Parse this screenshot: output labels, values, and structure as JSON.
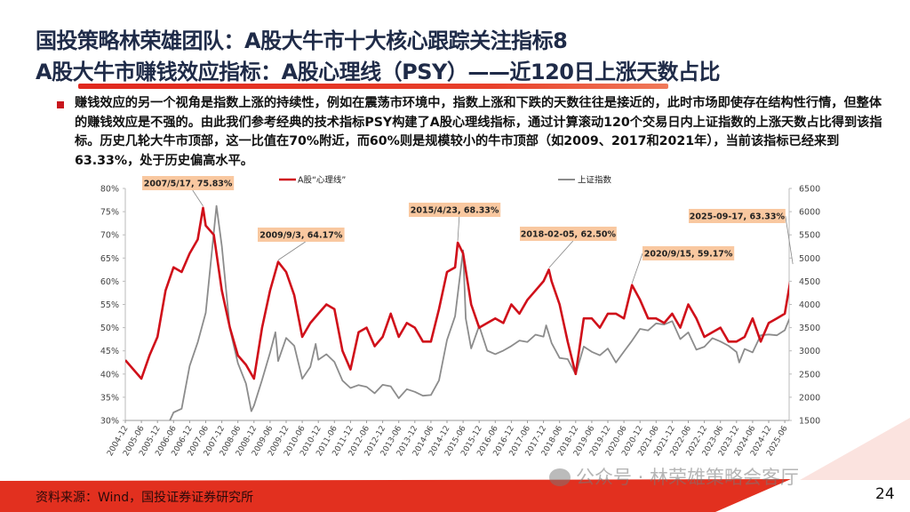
{
  "header": {
    "title_line1": "国投策略林荣雄团队：A股大牛市十大核心跟踪关注指标8",
    "title_line2": "A股大牛市赚钱效应指标：A股心理线（PSY）——近120日上涨天数占比"
  },
  "body": {
    "paragraph": "赚钱效应的另一个视角是指数上涨的持续性，例如在震荡市环境中，指数上涨和下跌的天数往往是接近的，此时市场即使存在结构性行情，但整体的赚钱效应是不强的。由此我们参考经典的技术指标PSY构建了A股心理线指标，通过计算滚动120个交易日内上证指数的上涨天数占比得到该指标。历史几轮大牛市顶部，这一比值在70%附近，而60%则是规模较小的牛市顶部（如2009、2017和2021年），当前该指标已经来到63.33%，处于历史偏高水平。"
  },
  "footer": {
    "source": "资料来源：Wind，国投证券证券研究所",
    "page": "24",
    "watermark": "公众号 · 林荣雄策略会客厅",
    "accent": "#e2301f"
  },
  "colors": {
    "title": "#1f2b48",
    "psy": "#d0101a",
    "sse": "#8c8c8c",
    "annotation_bg": "#f9c8a0"
  },
  "chart_data": {
    "type": "line",
    "left_axis": {
      "min": 0.3,
      "max": 0.8,
      "step": 0.05,
      "ticks": [
        "30%",
        "35%",
        "40%",
        "45%",
        "50%",
        "55%",
        "60%",
        "65%",
        "70%",
        "75%",
        "80%"
      ]
    },
    "right_axis": {
      "min": 1500,
      "max": 6500,
      "step": 500,
      "ticks": [
        "1500",
        "2000",
        "2500",
        "3000",
        "3500",
        "4000",
        "4500",
        "5000",
        "5500",
        "6000",
        "6500"
      ]
    },
    "x_ticks": [
      "2004-12",
      "2005-06",
      "2005-12",
      "2006-06",
      "2006-12",
      "2007-06",
      "2007-12",
      "2008-06",
      "2008-12",
      "2009-06",
      "2009-12",
      "2010-06",
      "2010-12",
      "2011-06",
      "2011-12",
      "2012-06",
      "2012-12",
      "2013-06",
      "2013-12",
      "2014-06",
      "2014-12",
      "2015-06",
      "2015-12",
      "2016-06",
      "2016-12",
      "2017-06",
      "2017-12",
      "2018-06",
      "2018-12",
      "2019-06",
      "2019-12",
      "2020-06",
      "2020-12",
      "2021-06",
      "2021-12",
      "2022-06",
      "2022-12",
      "2023-06",
      "2023-12",
      "2024-06",
      "2024-12",
      "2025-06"
    ],
    "legend": {
      "position": "top",
      "entries": [
        "A股“心理线”",
        "上证指数"
      ]
    },
    "series": [
      {
        "name": "A股“心理线”",
        "axis": "left",
        "color": "#d0101a",
        "points": [
          [
            "2004-12",
            0.43
          ],
          [
            "2005-03",
            0.41
          ],
          [
            "2005-06",
            0.39
          ],
          [
            "2005-09",
            0.44
          ],
          [
            "2005-12",
            0.48
          ],
          [
            "2006-03",
            0.58
          ],
          [
            "2006-06",
            0.63
          ],
          [
            "2006-09",
            0.62
          ],
          [
            "2006-12",
            0.66
          ],
          [
            "2007-03",
            0.69
          ],
          [
            "2007-05",
            0.7583
          ],
          [
            "2007-06",
            0.72
          ],
          [
            "2007-09",
            0.7
          ],
          [
            "2007-12",
            0.58
          ],
          [
            "2008-03",
            0.5
          ],
          [
            "2008-06",
            0.44
          ],
          [
            "2008-09",
            0.42
          ],
          [
            "2008-12",
            0.39
          ],
          [
            "2009-03",
            0.5
          ],
          [
            "2009-06",
            0.58
          ],
          [
            "2009-09",
            0.6417
          ],
          [
            "2009-12",
            0.62
          ],
          [
            "2010-03",
            0.57
          ],
          [
            "2010-06",
            0.48
          ],
          [
            "2010-09",
            0.51
          ],
          [
            "2010-12",
            0.53
          ],
          [
            "2011-03",
            0.55
          ],
          [
            "2011-06",
            0.54
          ],
          [
            "2011-09",
            0.45
          ],
          [
            "2011-12",
            0.41
          ],
          [
            "2012-03",
            0.49
          ],
          [
            "2012-06",
            0.5
          ],
          [
            "2012-09",
            0.46
          ],
          [
            "2012-12",
            0.48
          ],
          [
            "2013-03",
            0.53
          ],
          [
            "2013-06",
            0.48
          ],
          [
            "2013-09",
            0.51
          ],
          [
            "2013-12",
            0.5
          ],
          [
            "2014-03",
            0.47
          ],
          [
            "2014-06",
            0.47
          ],
          [
            "2014-09",
            0.54
          ],
          [
            "2014-12",
            0.62
          ],
          [
            "2015-03",
            0.63
          ],
          [
            "2015-04",
            0.6833
          ],
          [
            "2015-06",
            0.66
          ],
          [
            "2015-09",
            0.55
          ],
          [
            "2015-12",
            0.5
          ],
          [
            "2016-03",
            0.51
          ],
          [
            "2016-06",
            0.52
          ],
          [
            "2016-09",
            0.51
          ],
          [
            "2016-12",
            0.55
          ],
          [
            "2017-03",
            0.53
          ],
          [
            "2017-06",
            0.56
          ],
          [
            "2017-09",
            0.58
          ],
          [
            "2017-12",
            0.6
          ],
          [
            "2018-02",
            0.625
          ],
          [
            "2018-03",
            0.6
          ],
          [
            "2018-06",
            0.55
          ],
          [
            "2018-09",
            0.47
          ],
          [
            "2018-12",
            0.4
          ],
          [
            "2019-03",
            0.52
          ],
          [
            "2019-06",
            0.52
          ],
          [
            "2019-09",
            0.5
          ],
          [
            "2019-12",
            0.53
          ],
          [
            "2020-03",
            0.53
          ],
          [
            "2020-06",
            0.52
          ],
          [
            "2020-09",
            0.5917
          ],
          [
            "2020-12",
            0.56
          ],
          [
            "2021-03",
            0.52
          ],
          [
            "2021-06",
            0.52
          ],
          [
            "2021-09",
            0.51
          ],
          [
            "2021-12",
            0.53
          ],
          [
            "2022-03",
            0.5
          ],
          [
            "2022-06",
            0.55
          ],
          [
            "2022-09",
            0.52
          ],
          [
            "2022-12",
            0.48
          ],
          [
            "2023-03",
            0.49
          ],
          [
            "2023-06",
            0.5
          ],
          [
            "2023-09",
            0.47
          ],
          [
            "2023-12",
            0.47
          ],
          [
            "2024-03",
            0.48
          ],
          [
            "2024-06",
            0.52
          ],
          [
            "2024-09",
            0.47
          ],
          [
            "2024-12",
            0.51
          ],
          [
            "2025-03",
            0.52
          ],
          [
            "2025-06",
            0.53
          ],
          [
            "2025-09",
            0.6333
          ]
        ]
      },
      {
        "name": "上证指数",
        "axis": "right",
        "color": "#8c8c8c",
        "points": [
          [
            "2005-12",
            1161
          ],
          [
            "2006-03",
            1298
          ],
          [
            "2006-06",
            1672
          ],
          [
            "2006-09",
            1752
          ],
          [
            "2006-12",
            2675
          ],
          [
            "2007-03",
            3183
          ],
          [
            "2007-06",
            3820
          ],
          [
            "2007-09",
            5552
          ],
          [
            "2007-10",
            6124
          ],
          [
            "2007-12",
            5261
          ],
          [
            "2008-03",
            3472
          ],
          [
            "2008-06",
            2736
          ],
          [
            "2008-09",
            2293
          ],
          [
            "2008-11",
            1700
          ],
          [
            "2008-12",
            1820
          ],
          [
            "2009-03",
            2373
          ],
          [
            "2009-06",
            2959
          ],
          [
            "2009-08",
            3400
          ],
          [
            "2009-09",
            2779
          ],
          [
            "2009-12",
            3277
          ],
          [
            "2010-03",
            3109
          ],
          [
            "2010-06",
            2398
          ],
          [
            "2010-09",
            2655
          ],
          [
            "2010-11",
            3150
          ],
          [
            "2010-12",
            2808
          ],
          [
            "2011-03",
            2928
          ],
          [
            "2011-06",
            2762
          ],
          [
            "2011-09",
            2359
          ],
          [
            "2011-12",
            2199
          ],
          [
            "2012-03",
            2262
          ],
          [
            "2012-06",
            2225
          ],
          [
            "2012-09",
            2086
          ],
          [
            "2012-12",
            2269
          ],
          [
            "2013-03",
            2236
          ],
          [
            "2013-06",
            1979
          ],
          [
            "2013-09",
            2174
          ],
          [
            "2013-12",
            2116
          ],
          [
            "2014-03",
            2033
          ],
          [
            "2014-06",
            2048
          ],
          [
            "2014-09",
            2364
          ],
          [
            "2014-12",
            3234
          ],
          [
            "2015-03",
            3748
          ],
          [
            "2015-06",
            5166
          ],
          [
            "2015-07",
            3700
          ],
          [
            "2015-09",
            3052
          ],
          [
            "2015-12",
            3539
          ],
          [
            "2016-03",
            3003
          ],
          [
            "2016-06",
            2930
          ],
          [
            "2016-09",
            3005
          ],
          [
            "2016-12",
            3104
          ],
          [
            "2017-03",
            3223
          ],
          [
            "2017-06",
            3192
          ],
          [
            "2017-09",
            3349
          ],
          [
            "2017-12",
            3307
          ],
          [
            "2018-01",
            3550
          ],
          [
            "2018-03",
            3169
          ],
          [
            "2018-06",
            2847
          ],
          [
            "2018-09",
            2821
          ],
          [
            "2018-12",
            2494
          ],
          [
            "2019-03",
            3091
          ],
          [
            "2019-06",
            2979
          ],
          [
            "2019-09",
            2905
          ],
          [
            "2019-12",
            3050
          ],
          [
            "2020-03",
            2750
          ],
          [
            "2020-06",
            2985
          ],
          [
            "2020-09",
            3218
          ],
          [
            "2020-12",
            3473
          ],
          [
            "2021-03",
            3441
          ],
          [
            "2021-06",
            3591
          ],
          [
            "2021-09",
            3568
          ],
          [
            "2021-12",
            3640
          ],
          [
            "2022-03",
            3252
          ],
          [
            "2022-06",
            3399
          ],
          [
            "2022-09",
            3024
          ],
          [
            "2022-12",
            3089
          ],
          [
            "2023-03",
            3273
          ],
          [
            "2023-06",
            3202
          ],
          [
            "2023-09",
            3110
          ],
          [
            "2023-12",
            2975
          ],
          [
            "2024-01",
            2750
          ],
          [
            "2024-03",
            3041
          ],
          [
            "2024-06",
            2967
          ],
          [
            "2024-09",
            3336
          ],
          [
            "2024-12",
            3352
          ],
          [
            "2025-03",
            3336
          ],
          [
            "2025-06",
            3444
          ],
          [
            "2025-09",
            3876
          ]
        ]
      }
    ],
    "annotations": [
      {
        "date": "2007-05",
        "value": 0.7583,
        "label": "2007/5/17, 75.83%"
      },
      {
        "date": "2009-09",
        "value": 0.6417,
        "label": "2009/9/3, 64.17%"
      },
      {
        "date": "2015-04",
        "value": 0.6833,
        "label": "2015/4/23, 68.33%"
      },
      {
        "date": "2018-02",
        "value": 0.625,
        "label": "2018-02-05, 62.50%"
      },
      {
        "date": "2020-09",
        "value": 0.5917,
        "label": "2020/9/15, 59.17%"
      },
      {
        "date": "2025-09",
        "value": 0.6333,
        "label": "2025-09-17, 63.33%"
      }
    ]
  }
}
